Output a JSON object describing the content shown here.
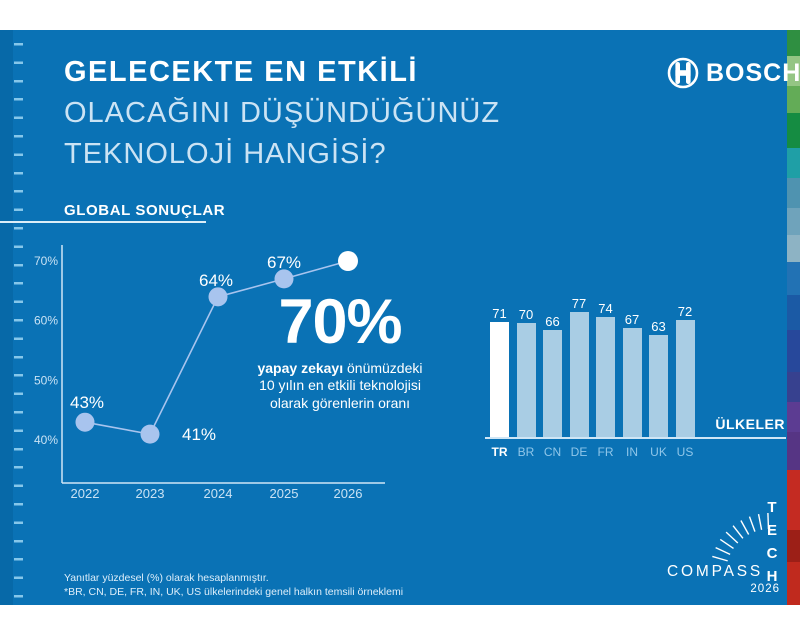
{
  "brand": {
    "name": "BOSCH"
  },
  "header": {
    "title_line1": "GELECEKTE EN ETKİLİ",
    "title_line2": "OLACAĞINI DÜŞÜNDÜĞÜNÜZ",
    "title_line3": "TEKNOLOJİ HANGİSİ?",
    "section_label": "GLOBAL SONUÇLAR"
  },
  "chart_data": [
    {
      "type": "line",
      "title": "GLOBAL SONUÇLAR",
      "x": [
        "2022",
        "2023",
        "2024",
        "2025",
        "2026"
      ],
      "values": [
        43,
        41,
        64,
        67,
        70
      ],
      "point_labels": [
        "43%",
        "41%",
        "64%",
        "67%",
        "70%"
      ],
      "inline_labels": [
        true,
        true,
        true,
        true,
        false
      ],
      "yticks": [
        70,
        60,
        50,
        40
      ],
      "ytick_labels": [
        "70%",
        "60%",
        "50%",
        "40%"
      ],
      "ylim": [
        33,
        74
      ],
      "grid": false,
      "highlight_index": 4,
      "point_color": "#a8c4ee",
      "line_color": "#a8c4ee",
      "highlight_color": "#ffffff",
      "axis_color": "#cfe6f6"
    },
    {
      "type": "bar",
      "categories": [
        "TR",
        "BR",
        "CN",
        "DE",
        "FR",
        "IN",
        "UK",
        "US"
      ],
      "values": [
        71,
        70,
        66,
        77,
        74,
        67,
        63,
        72
      ],
      "xlabel": "ÜLKELER",
      "ylim": [
        0,
        92
      ],
      "highlight_index": 0,
      "bar_color": "#a9cde4",
      "highlight_color": "#ffffff"
    }
  ],
  "callout": {
    "value": "70%",
    "lead": "yapay zekayı",
    "line1_rest": " önümüzdeki",
    "line2": "10 yılın en etkili teknolojisi",
    "line3": "olarak görenlerin oranı"
  },
  "footnote": {
    "line1": "Yanıtlar yüzdesel (%) olarak hesaplanmıştır.",
    "line2": "*BR, CN, DE, FR, IN, UK, US ülkelerindeki genel halkın temsili örneklemi"
  },
  "tech_compass": {
    "vertical": [
      "T",
      "E",
      "C",
      "H"
    ],
    "word": "COMPASS",
    "year": "2026"
  },
  "colors": {
    "background": "#0a72b5",
    "left_band": "#0769a8",
    "pale_text": "#cbe3f4",
    "white": "#ffffff"
  },
  "decor": {
    "right_strip": [
      {
        "c": "#2f8f41",
        "h": 26
      },
      {
        "c": "#94c584",
        "h": 30
      },
      {
        "c": "#63ac57",
        "h": 27
      },
      {
        "c": "#158c42",
        "h": 35
      },
      {
        "c": "#1f9fa6",
        "h": 30
      },
      {
        "c": "#4f93b0",
        "h": 30
      },
      {
        "c": "#6fa3bb",
        "h": 27
      },
      {
        "c": "#8db3c4",
        "h": 27
      },
      {
        "c": "#2272b4",
        "h": 33
      },
      {
        "c": "#1b5aa5",
        "h": 35
      },
      {
        "c": "#27489b",
        "h": 42
      },
      {
        "c": "#37418f",
        "h": 30
      },
      {
        "c": "#5c3c92",
        "h": 30
      },
      {
        "c": "#563584",
        "h": 38
      },
      {
        "c": "#c42b22",
        "h": 60
      },
      {
        "c": "#9c1f17",
        "h": 32
      },
      {
        "c": "#c02a1e",
        "h": 43
      }
    ]
  }
}
